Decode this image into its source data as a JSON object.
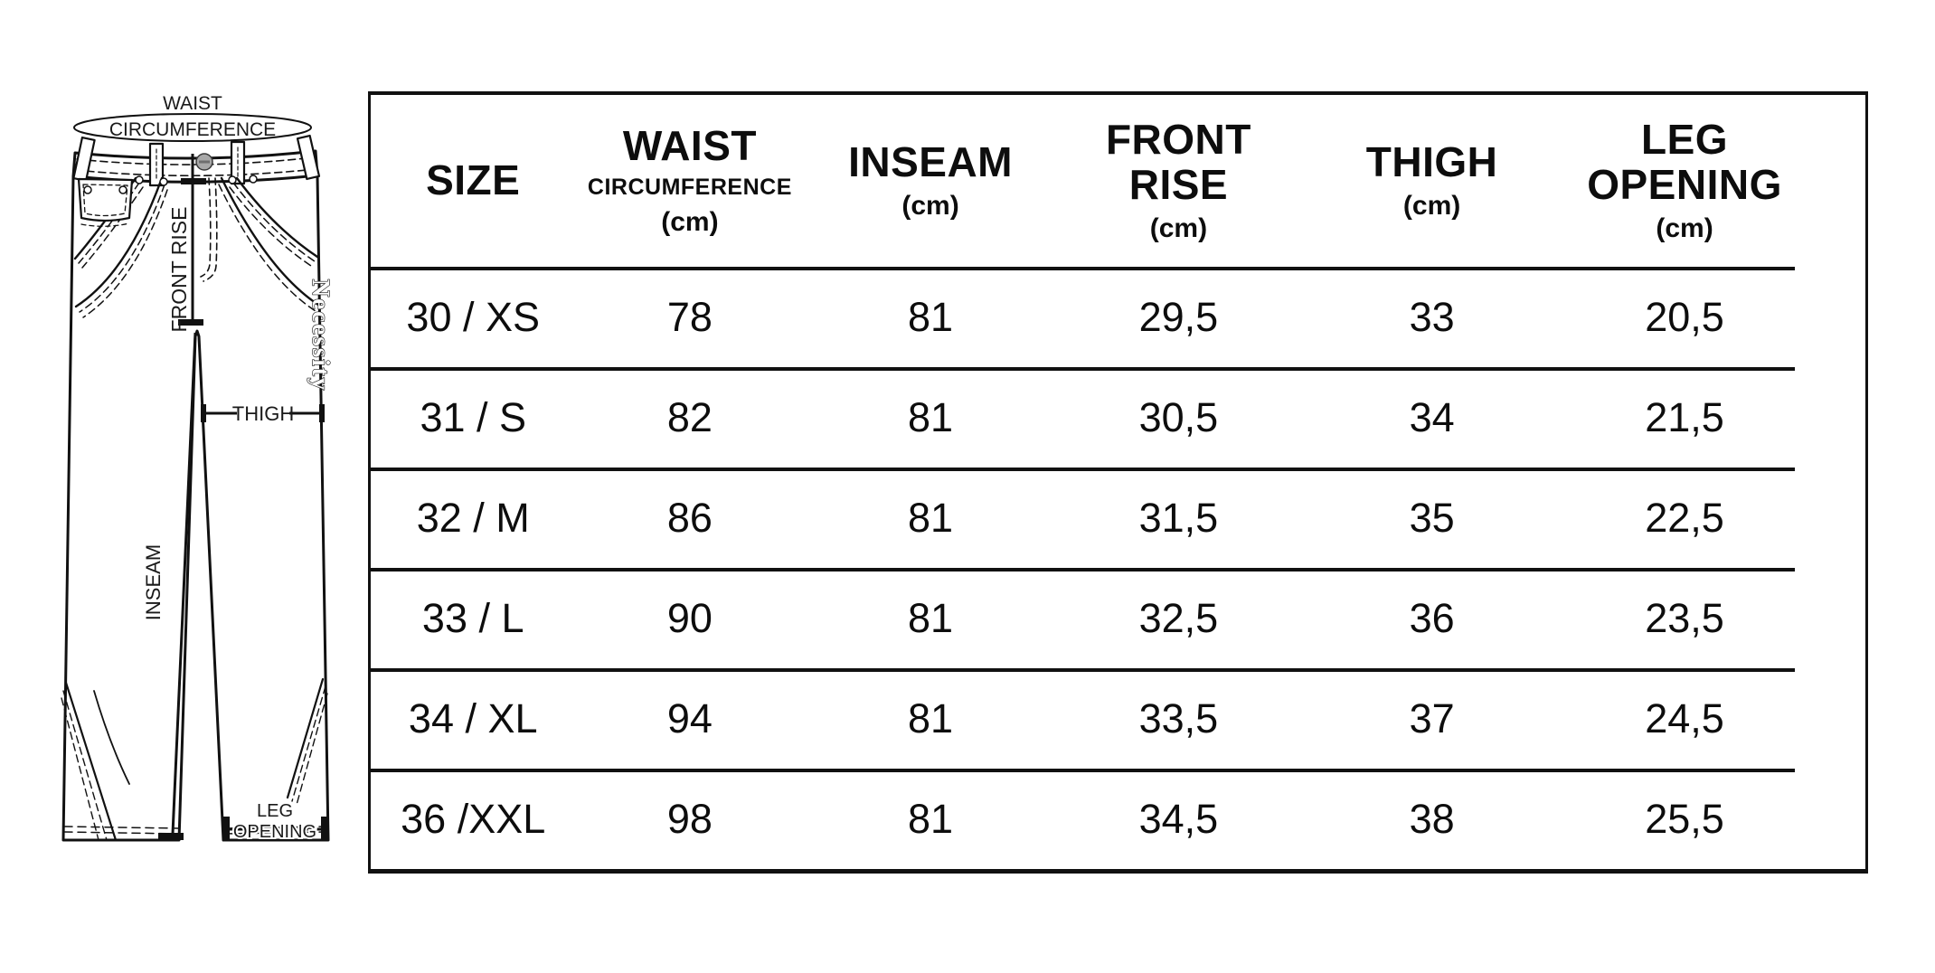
{
  "diagram": {
    "waist_label": {
      "line1": "WAIST",
      "line2": "CIRCUMFERENCE"
    },
    "front_rise_label": "FRONT RISE",
    "inseam_label": "INSEAM",
    "thigh_label": "THIGH",
    "leg_opening_label": {
      "line1": "LEG",
      "line2": "OPENING"
    },
    "side_seam_text": "Necessity"
  },
  "table": {
    "columns": [
      {
        "id": "size",
        "title_lines": [
          "SIZE"
        ],
        "subtitle": "",
        "unit": ""
      },
      {
        "id": "waist",
        "title_lines": [
          "WAIST"
        ],
        "subtitle": "CIRCUMFERENCE",
        "unit": "(cm)"
      },
      {
        "id": "inseam",
        "title_lines": [
          "INSEAM"
        ],
        "subtitle": "",
        "unit": "(cm)"
      },
      {
        "id": "front-rise",
        "title_lines": [
          "FRONT",
          "RISE"
        ],
        "subtitle": "",
        "unit": "(cm)"
      },
      {
        "id": "thigh",
        "title_lines": [
          "THIGH"
        ],
        "subtitle": "",
        "unit": "(cm)"
      },
      {
        "id": "leg-opening",
        "title_lines": [
          "LEG",
          "OPENING"
        ],
        "subtitle": "",
        "unit": "(cm)"
      }
    ],
    "rows": [
      {
        "size": "30 / XS",
        "values": [
          "78",
          "81",
          "29,5",
          "33",
          "20,5"
        ]
      },
      {
        "size": "31 / S",
        "values": [
          "82",
          "81",
          "30,5",
          "34",
          "21,5"
        ]
      },
      {
        "size": "32 / M",
        "values": [
          "86",
          "81",
          "31,5",
          "35",
          "22,5"
        ]
      },
      {
        "size": "33 / L",
        "values": [
          "90",
          "81",
          "32,5",
          "36",
          "23,5"
        ]
      },
      {
        "size": "34 / XL",
        "values": [
          "94",
          "81",
          "33,5",
          "37",
          "24,5"
        ]
      },
      {
        "size": "36 /XXL",
        "values": [
          "98",
          "81",
          "34,5",
          "38",
          "25,5"
        ]
      }
    ]
  },
  "colors": {
    "line": "#111111",
    "background": "#ffffff",
    "button_gray": "#a8a8a8"
  }
}
